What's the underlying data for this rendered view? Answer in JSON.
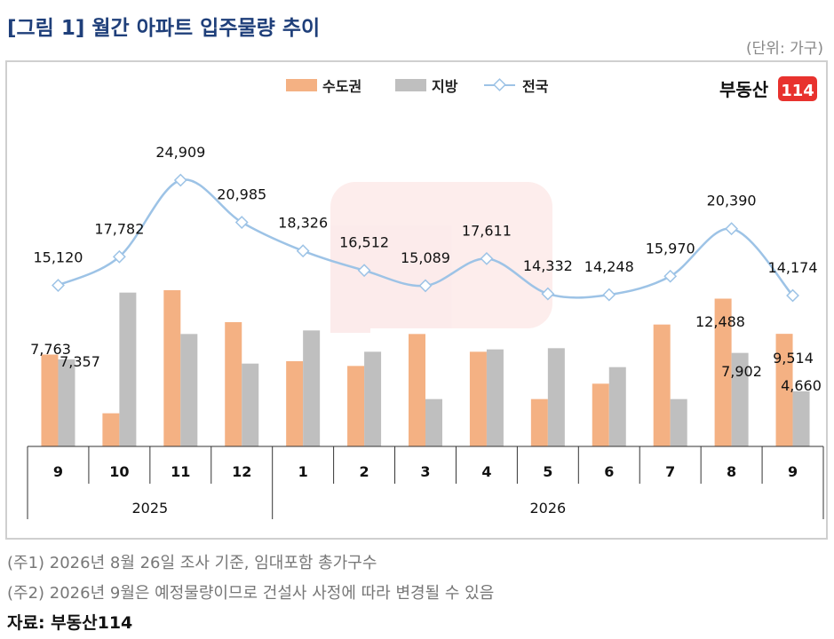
{
  "header": {
    "title": "[그림 1] 월간 아파트 입주물량 추이",
    "unit": "(단위: 가구)"
  },
  "logo": {
    "text": "부동산",
    "number": "114"
  },
  "footer": {
    "note1": "(주1) 2026년 8월 26일 조사 기준, 임대포함 총가구수",
    "note2": "(주2) 2026년 9월은 예정물량이므로 건설사 사정에 따라 변경될 수 있음",
    "source": "자료: 부동산114"
  },
  "colors": {
    "capital": "#f4b183",
    "regional": "#bfbfbf",
    "national": "#9dc3e6",
    "title": "#1f3f7a",
    "logo_red": "#e8322e"
  },
  "chart_data": {
    "type": "bar",
    "categories": [
      "9",
      "10",
      "11",
      "12",
      "1",
      "2",
      "3",
      "4",
      "5",
      "6",
      "7",
      "8",
      "9"
    ],
    "years": [
      {
        "label": "2025",
        "months": [
          "9",
          "10",
          "11",
          "12"
        ]
      },
      {
        "label": "2026",
        "months": [
          "1",
          "2",
          "3",
          "4",
          "5",
          "6",
          "7",
          "8",
          "9"
        ]
      }
    ],
    "legend": [
      "수도권",
      "지방",
      "전국"
    ],
    "legend_position": "top-center",
    "series": [
      {
        "name": "수도권",
        "type": "bar",
        "values": [
          7763,
          2800,
          13200,
          10500,
          7200,
          6800,
          9500,
          8000,
          4000,
          5300,
          10300,
          12488,
          9514
        ],
        "labels": [
          "7,763",
          "",
          "",
          "",
          "",
          "",
          "",
          "",
          "",
          "",
          "",
          "12,488",
          "9,514"
        ]
      },
      {
        "name": "지방",
        "type": "bar",
        "values": [
          7357,
          13000,
          9500,
          7000,
          9800,
          8000,
          4000,
          8200,
          8300,
          6700,
          4000,
          7902,
          4660
        ],
        "labels": [
          "7,357",
          "",
          "",
          "",
          "",
          "",
          "",
          "",
          "",
          "",
          "",
          "7,902",
          "4,660"
        ]
      },
      {
        "name": "전국",
        "type": "line",
        "values": [
          15120,
          17782,
          24909,
          20985,
          18326,
          16512,
          15089,
          17611,
          14332,
          14248,
          15970,
          20390,
          14174
        ],
        "labels": [
          "15,120",
          "17,782",
          "24,909",
          "20,985",
          "18,326",
          "16,512",
          "15,089",
          "17,611",
          "14,332",
          "14,248",
          "15,970",
          "20,390",
          "14,174"
        ]
      }
    ],
    "grid": false
  }
}
